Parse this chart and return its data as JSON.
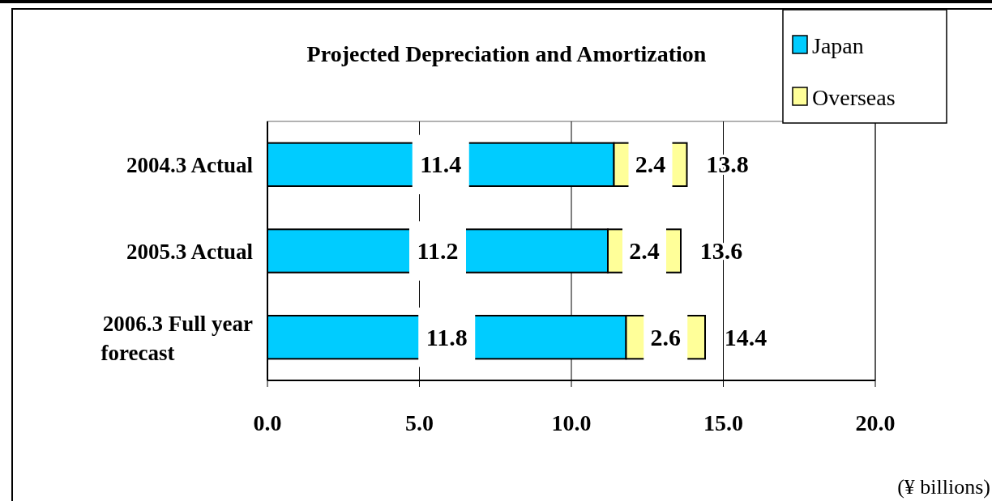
{
  "chart_data": {
    "type": "bar",
    "orientation": "horizontal",
    "stacked": true,
    "title": "Projected Depreciation and Amortization",
    "xlabel": "(¥ billions)",
    "categories": [
      "2004.3 Actual",
      "2005.3 Actual",
      "2006.3 Full year forecast"
    ],
    "series": [
      {
        "name": "Japan",
        "color": "#00ccff",
        "values": [
          11.4,
          11.2,
          11.8
        ]
      },
      {
        "name": "Overseas",
        "color": "#ffff99",
        "values": [
          2.4,
          2.4,
          2.6
        ]
      }
    ],
    "totals": [
      "13.8",
      "13.6",
      "14.4"
    ],
    "data_labels": true,
    "xlim": [
      0,
      20
    ],
    "xticks": [
      {
        "value": 0,
        "label": "0.0"
      },
      {
        "value": 5,
        "label": "5.0"
      },
      {
        "value": 10,
        "label": "10.0"
      },
      {
        "value": 15,
        "label": "15.0"
      },
      {
        "value": 20,
        "label": "20.0"
      }
    ],
    "grid": "x",
    "legend": "top right"
  }
}
